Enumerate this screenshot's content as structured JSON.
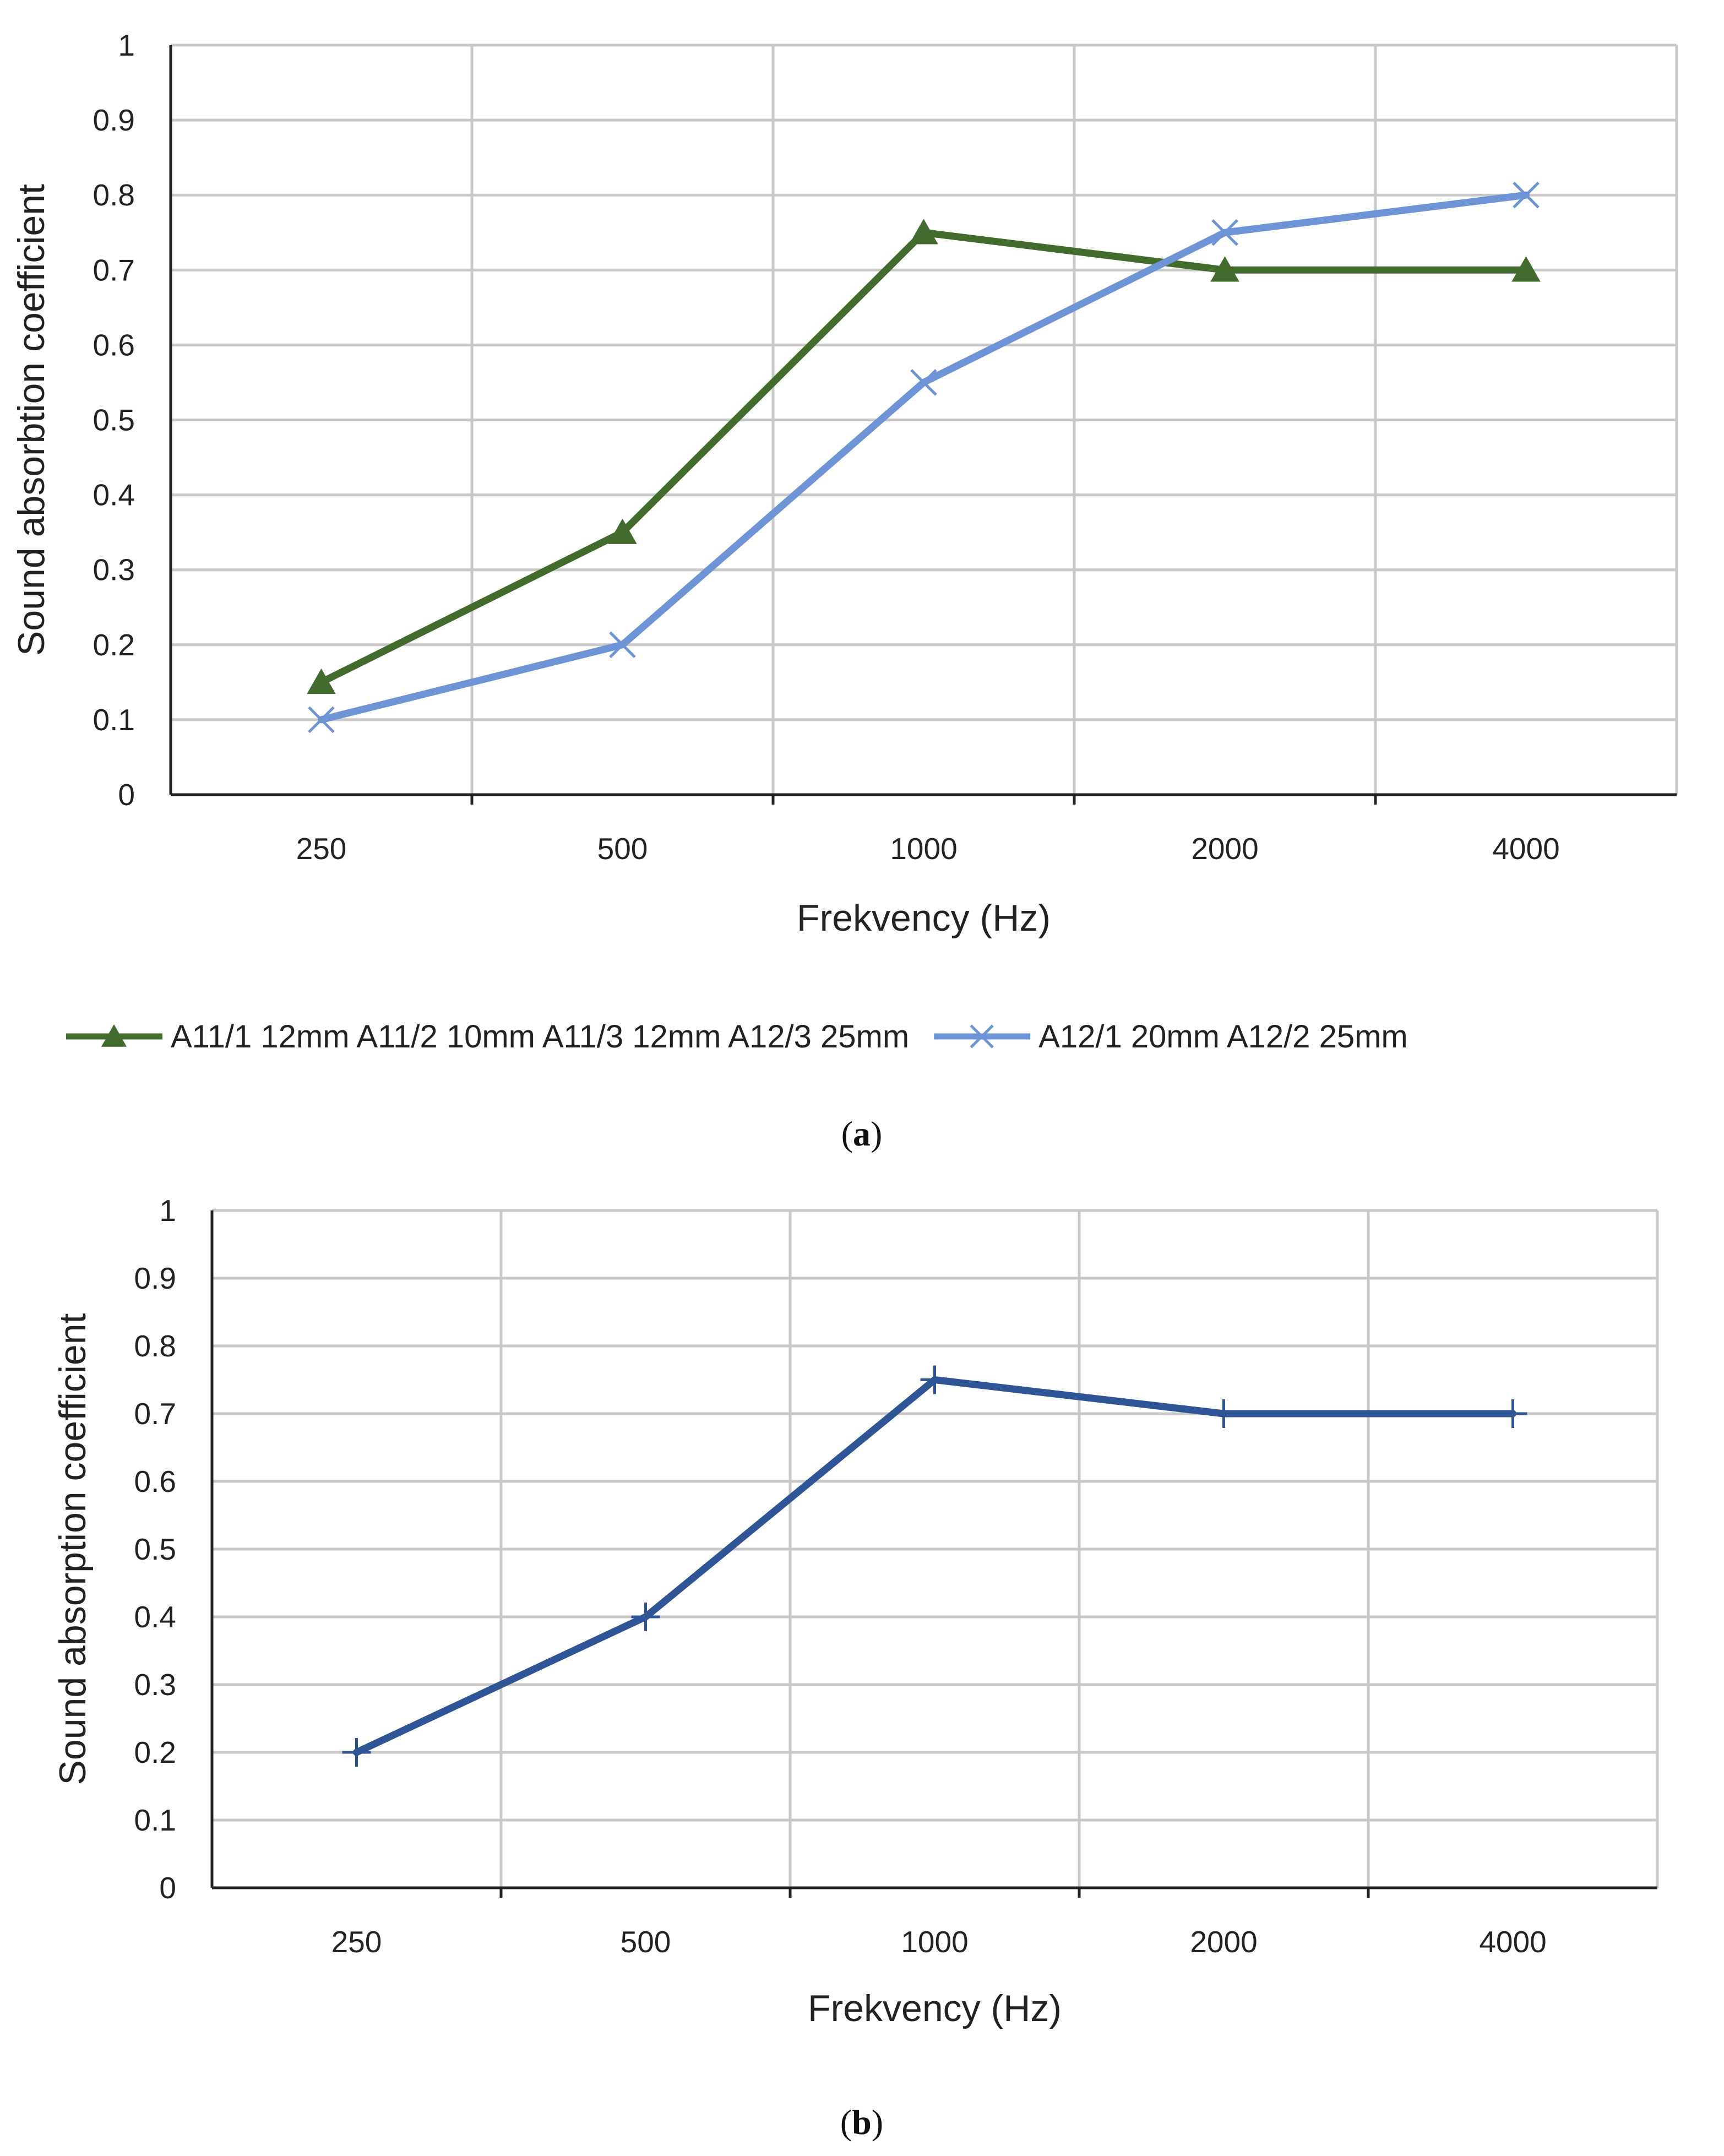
{
  "chart_data": [
    {
      "id": "a",
      "type": "line",
      "caption_label": "a",
      "categories": [
        "250",
        "500",
        "1000",
        "2000",
        "4000"
      ],
      "xlabel": "Frekvency (Hz)",
      "ylabel": "Sound absorbtion coefficient",
      "ylim": [
        0,
        1
      ],
      "yticks": [
        "0",
        "0.1",
        "0.2",
        "0.3",
        "0.4",
        "0.5",
        "0.6",
        "0.7",
        "0.8",
        "0.9",
        "1"
      ],
      "grid": true,
      "legend_position": "bottom",
      "series": [
        {
          "name": "A11/1 12mm A11/2 10mm A11/3 12mm A12/3 25mm",
          "values": [
            0.15,
            0.35,
            0.75,
            0.7,
            0.7
          ],
          "color": "#436b2e",
          "marker": "triangle"
        },
        {
          "name": "A12/1 20mm A12/2 25mm",
          "values": [
            0.1,
            0.2,
            0.55,
            0.75,
            0.8
          ],
          "color": "#6f94d6",
          "marker": "x"
        }
      ]
    },
    {
      "id": "b",
      "type": "line",
      "caption_label": "b",
      "categories": [
        "250",
        "500",
        "1000",
        "2000",
        "4000"
      ],
      "xlabel": "Frekvency (Hz)",
      "ylabel": "Sound absorption coefficient",
      "ylim": [
        0,
        1
      ],
      "yticks": [
        "0",
        "0.1",
        "0.2",
        "0.3",
        "0.4",
        "0.5",
        "0.6",
        "0.7",
        "0.8",
        "0.9",
        "1"
      ],
      "grid": true,
      "legend_position": "none",
      "series": [
        {
          "name": "",
          "values": [
            0.2,
            0.4,
            0.75,
            0.7,
            0.7
          ],
          "color": "#2f5597",
          "marker": "plus"
        }
      ]
    }
  ]
}
